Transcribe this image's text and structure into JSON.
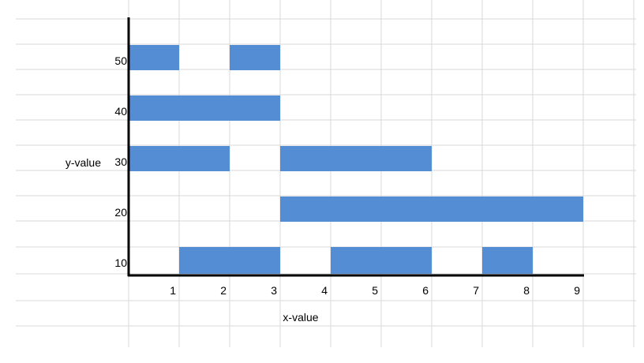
{
  "chart_data": {
    "type": "range_bar",
    "x_label": "x-value",
    "y_label": "y-value",
    "xlim": [
      0,
      9
    ],
    "xticks": [
      1,
      2,
      3,
      4,
      5,
      6,
      7,
      8,
      9
    ],
    "color": "#548dd4",
    "rows": [
      {
        "y": 10,
        "segments": [
          [
            1,
            3
          ],
          [
            4,
            6
          ],
          [
            7,
            8
          ]
        ]
      },
      {
        "y": 20,
        "segments": [
          [
            3,
            9
          ]
        ]
      },
      {
        "y": 30,
        "segments": [
          [
            0,
            2
          ],
          [
            3,
            6
          ]
        ]
      },
      {
        "y": 40,
        "segments": [
          [
            0,
            3
          ]
        ]
      },
      {
        "y": 50,
        "segments": [
          [
            0,
            1
          ],
          [
            2,
            3
          ]
        ]
      }
    ]
  }
}
